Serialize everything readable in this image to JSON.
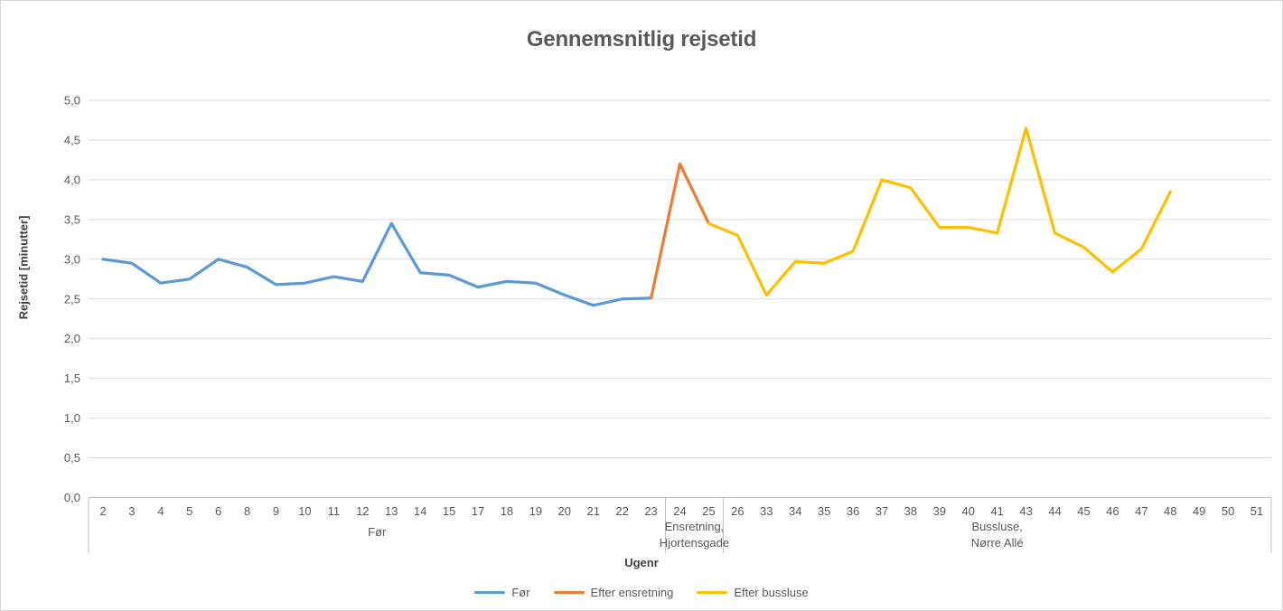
{
  "chart_data": {
    "type": "line",
    "title": "Gennemsnitlig rejsetid",
    "xlabel": "Ugenr",
    "ylabel": "Rejsetid [minutter]",
    "ylim": [
      0,
      5
    ],
    "ytick_step": 0.5,
    "ytick_labels": [
      "0,0",
      "0,5",
      "1,0",
      "1,5",
      "2,0",
      "2,5",
      "3,0",
      "3,5",
      "4,0",
      "4,5",
      "5,0"
    ],
    "grid": true,
    "legend_position": "bottom",
    "categories": [
      "2",
      "3",
      "4",
      "5",
      "6",
      "8",
      "9",
      "10",
      "11",
      "12",
      "13",
      "14",
      "15",
      "17",
      "18",
      "19",
      "20",
      "21",
      "22",
      "23",
      "24",
      "25",
      "26",
      "33",
      "34",
      "35",
      "36",
      "37",
      "38",
      "39",
      "40",
      "41",
      "43",
      "44",
      "45",
      "46",
      "47",
      "48",
      "49",
      "50",
      "51"
    ],
    "category_groups": [
      {
        "label": "Før",
        "label_lines": [
          "Før"
        ],
        "start": "2",
        "end": "23"
      },
      {
        "label": "Ensretning, Hjortensgade",
        "label_lines": [
          "Ensretning,",
          "Hjortensgade"
        ],
        "start": "24",
        "end": "25"
      },
      {
        "label": "Bussluse, Nørre Allé",
        "label_lines": [
          "Bussluse,",
          "Nørre Allé"
        ],
        "start": "26",
        "end": "51"
      }
    ],
    "series": [
      {
        "name": "Før",
        "color": "#5B9BD5",
        "weeks": [
          "2",
          "3",
          "4",
          "5",
          "6",
          "8",
          "9",
          "10",
          "11",
          "12",
          "13",
          "14",
          "15",
          "17",
          "18",
          "19",
          "20",
          "21",
          "22",
          "23"
        ],
        "values": [
          3.0,
          2.95,
          2.7,
          2.75,
          3.0,
          2.9,
          2.68,
          2.7,
          2.78,
          2.72,
          3.45,
          2.83,
          2.8,
          2.65,
          2.72,
          2.7,
          2.55,
          2.42,
          2.5,
          2.51
        ]
      },
      {
        "name": "Efter ensretning",
        "color": "#ED7D31",
        "weeks": [
          "23",
          "24",
          "25"
        ],
        "values": [
          2.51,
          4.2,
          3.45
        ]
      },
      {
        "name": "Efter bussluse",
        "color": "#FFC000",
        "weeks": [
          "25",
          "26",
          "33",
          "34",
          "35",
          "36",
          "37",
          "38",
          "39",
          "40",
          "41",
          "43",
          "44",
          "45",
          "46",
          "47",
          "48"
        ],
        "values": [
          3.45,
          3.3,
          2.55,
          2.97,
          2.95,
          3.1,
          4.0,
          3.9,
          3.4,
          3.4,
          3.33,
          4.65,
          3.33,
          3.15,
          2.84,
          3.13,
          3.85
        ]
      }
    ],
    "colors": {
      "gridline": "#D9D9D9",
      "axis_line": "#BFBFBF",
      "tick_text": "#595959",
      "title_text": "#595959"
    }
  }
}
